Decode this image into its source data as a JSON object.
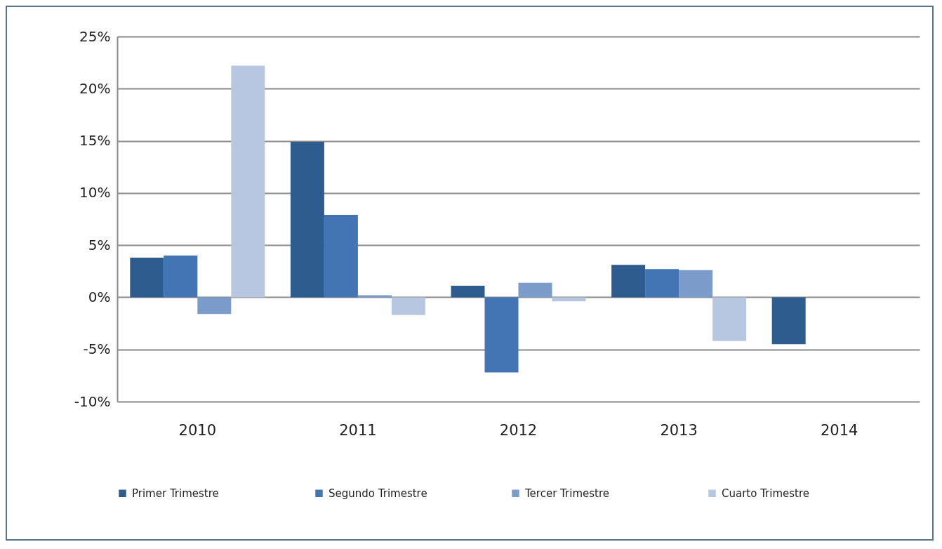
{
  "chart_data": {
    "type": "bar",
    "categories": [
      "2010",
      "2011",
      "2012",
      "2013",
      "2014"
    ],
    "series": [
      {
        "name": "Primer Trimestre",
        "color": "#2f5c8f",
        "values": [
          3.8,
          14.9,
          1.1,
          3.1,
          -4.5
        ]
      },
      {
        "name": "Segundo Trimestre",
        "color": "#4375b5",
        "values": [
          4.0,
          7.9,
          -7.2,
          2.7,
          null
        ]
      },
      {
        "name": "Tercer Trimestre",
        "color": "#7b9ccb",
        "values": [
          -1.6,
          0.2,
          1.4,
          2.6,
          null
        ]
      },
      {
        "name": "Cuarto Trimestre",
        "color": "#b7c7e2",
        "values": [
          22.2,
          -1.7,
          -0.4,
          -4.2,
          null
        ]
      }
    ],
    "ylim": [
      -10,
      25
    ],
    "yticks": [
      {
        "value": -10,
        "label": "-10%"
      },
      {
        "value": -5,
        "label": "-5%"
      },
      {
        "value": 0,
        "label": "0%"
      },
      {
        "value": 5,
        "label": "5%"
      },
      {
        "value": 10,
        "label": "10%"
      },
      {
        "value": 15,
        "label": "15%"
      },
      {
        "value": 20,
        "label": "20%"
      },
      {
        "value": 25,
        "label": "25%"
      }
    ],
    "grid": "y",
    "legend": "bottom"
  }
}
